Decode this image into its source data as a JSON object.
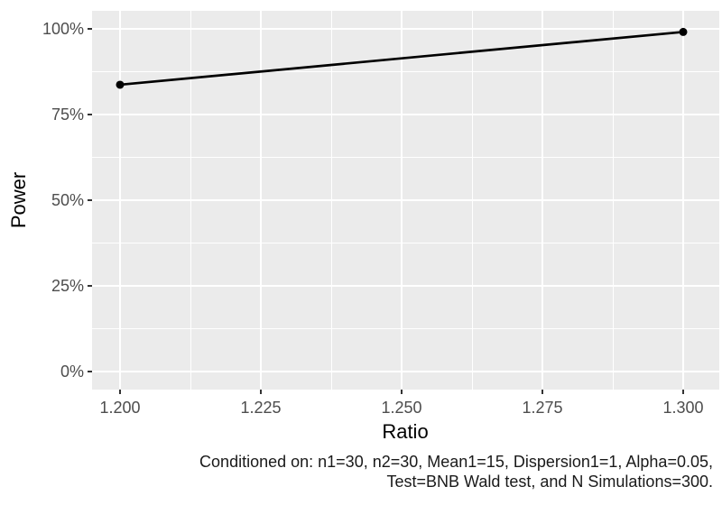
{
  "colors": {
    "page_bg": "#FFFFFF",
    "panel_bg": "#EBEBEB",
    "grid": "#FFFFFF",
    "series": "#000000",
    "tick_label": "#4D4D4D",
    "axis_title": "#000000",
    "tick_mark": "#333333",
    "caption": "#1A1A1A"
  },
  "chart_data": {
    "type": "line",
    "title": "",
    "xlabel": "Ratio",
    "ylabel": "Power",
    "x": [
      1.2,
      1.3
    ],
    "series": [
      {
        "name": "Power",
        "values": [
          0.837,
          0.991
        ]
      }
    ],
    "x_ticks": [
      {
        "value": 1.2,
        "label": "1.200"
      },
      {
        "value": 1.225,
        "label": "1.225"
      },
      {
        "value": 1.25,
        "label": "1.250"
      },
      {
        "value": 1.275,
        "label": "1.275"
      },
      {
        "value": 1.3,
        "label": "1.300"
      }
    ],
    "y_ticks": [
      {
        "value": 0.0,
        "label": "0%"
      },
      {
        "value": 0.25,
        "label": "25%"
      },
      {
        "value": 0.5,
        "label": "50%"
      },
      {
        "value": 0.75,
        "label": "75%"
      },
      {
        "value": 1.0,
        "label": "100%"
      }
    ],
    "xlim": [
      1.2,
      1.3
    ],
    "ylim": [
      0,
      1
    ],
    "grid": true,
    "minor_grid": true,
    "legend": "none",
    "point_style": "filled-circle",
    "point_radius": 4.5,
    "line_width": 2.7
  },
  "caption": {
    "line1": "Conditioned on: n1=30, n2=30, Mean1=15, Dispersion1=1, Alpha=0.05,",
    "line2": "Test=BNB Wald test, and N Simulations=300."
  }
}
